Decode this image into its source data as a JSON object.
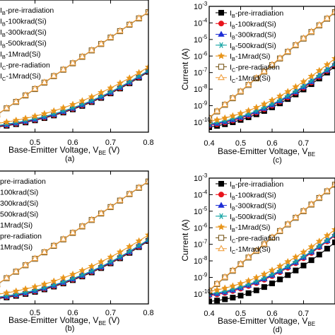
{
  "figure": {
    "colors": {
      "pre": "#000000",
      "k100": "#e8141c",
      "k300": "#1f2fd6",
      "k500": "#17a6a6",
      "m1": "#e8951a",
      "ic_pre": "#7a5a1e",
      "ic_m1": "#f0a040"
    }
  },
  "chart_data": [
    {
      "id": "a",
      "type": "line",
      "panel_label": "(a)",
      "xlabel": "Base-Emitter Voltage, V",
      "xlabel_sub": "BE",
      "xlabel_unit": " (V)",
      "ylabel": "",
      "xlim": [
        0.4,
        0.8
      ],
      "xticks": [
        "0.5",
        "0.6",
        "0.7",
        "0.8"
      ],
      "yscale": "log",
      "ylim_exp": [
        -10.3,
        -2.7
      ],
      "legend": [
        {
          "pre": "I",
          "sub": "B",
          "post": "-pre-irradiation",
          "series": 0
        },
        {
          "pre": "I",
          "sub": "B",
          "post": "-100krad(Si)",
          "series": 1
        },
        {
          "pre": "I",
          "sub": "B",
          "post": "-300krad(Si)",
          "series": 2
        },
        {
          "pre": "I",
          "sub": "B",
          "post": "-500krad(Si)",
          "series": 3
        },
        {
          "pre": "I",
          "sub": "B",
          "post": "-1Mrad(Si)",
          "series": 4
        },
        {
          "pre": "I",
          "sub": "C",
          "post": "-pre-radiation",
          "series": 5
        },
        {
          "pre": "I",
          "sub": "C",
          "post": "-1Mrad(Si)",
          "series": 6
        }
      ],
      "x": [
        0.4,
        0.425,
        0.45,
        0.475,
        0.5,
        0.525,
        0.55,
        0.575,
        0.6,
        0.625,
        0.65,
        0.675,
        0.7,
        0.725,
        0.75,
        0.775,
        0.8
      ],
      "series": [
        {
          "marker": "square-filled",
          "color_key": "pre",
          "log10": [
            -10.0,
            -9.93,
            -9.84,
            -9.74,
            -9.62,
            -9.49,
            -9.34,
            -9.17,
            -8.99,
            -8.79,
            -8.57,
            -8.33,
            -8.07,
            -7.79,
            -7.49,
            -7.17,
            -6.83
          ]
        },
        {
          "marker": "circle-filled",
          "color_key": "k100",
          "log10": [
            -9.97,
            -9.9,
            -9.81,
            -9.71,
            -9.59,
            -9.46,
            -9.31,
            -9.14,
            -8.96,
            -8.76,
            -8.54,
            -8.3,
            -8.04,
            -7.76,
            -7.46,
            -7.14,
            -6.8
          ]
        },
        {
          "marker": "triangle-filled",
          "color_key": "k300",
          "log10": [
            -9.94,
            -9.87,
            -9.78,
            -9.68,
            -9.56,
            -9.43,
            -9.28,
            -9.11,
            -8.93,
            -8.73,
            -8.51,
            -8.27,
            -8.01,
            -7.73,
            -7.43,
            -7.11,
            -6.78
          ]
        },
        {
          "marker": "star6",
          "color_key": "k500",
          "log10": [
            -9.91,
            -9.84,
            -9.75,
            -9.65,
            -9.53,
            -9.4,
            -9.25,
            -9.08,
            -8.9,
            -8.7,
            -8.48,
            -8.24,
            -7.98,
            -7.7,
            -7.4,
            -7.08,
            -6.76
          ]
        },
        {
          "marker": "star5",
          "color_key": "m1",
          "log10": [
            -9.8,
            -9.72,
            -9.62,
            -9.51,
            -9.38,
            -9.24,
            -9.08,
            -8.9,
            -8.71,
            -8.5,
            -8.27,
            -8.02,
            -7.76,
            -7.48,
            -7.19,
            -6.88,
            -6.56
          ]
        },
        {
          "marker": "square-open",
          "color_key": "ic_pre",
          "log10": [
            -9.3,
            -8.93,
            -8.56,
            -8.19,
            -7.82,
            -7.45,
            -7.08,
            -6.71,
            -6.34,
            -5.97,
            -5.6,
            -5.23,
            -4.86,
            -4.49,
            -4.12,
            -3.76,
            -3.4
          ]
        },
        {
          "marker": "triangle-open",
          "color_key": "ic_m1",
          "log10": [
            -9.28,
            -8.91,
            -8.54,
            -8.17,
            -7.8,
            -7.43,
            -7.06,
            -6.69,
            -6.32,
            -5.95,
            -5.58,
            -5.21,
            -4.84,
            -4.47,
            -4.1,
            -3.74,
            -3.38
          ]
        }
      ]
    },
    {
      "id": "c",
      "type": "line",
      "panel_label": "(c)",
      "xlabel": "Base-Emitter Voltage, V",
      "xlabel_sub": "BE",
      "xlabel_unit": "",
      "ylabel": "Current (A)",
      "xlim": [
        0.4,
        0.8
      ],
      "xticks": [
        "0.4",
        "0.5",
        "0.6",
        "0.7"
      ],
      "yscale": "log",
      "ylim_exp": [
        -10.6,
        -3.0
      ],
      "yticks_exp": [
        -10,
        -9,
        -8,
        -7,
        -6,
        -5,
        -4,
        -3
      ],
      "ytick_base": "10",
      "legend": [
        {
          "pre": "I",
          "sub": "B",
          "post": "-pre-irradiation",
          "series": 0
        },
        {
          "pre": "I",
          "sub": "B",
          "post": "-100krad(Si)",
          "series": 1
        },
        {
          "pre": "I",
          "sub": "B",
          "post": "-300krad(Si)",
          "series": 2
        },
        {
          "pre": "I",
          "sub": "B",
          "post": "-500krad(Si)",
          "series": 3
        },
        {
          "pre": "I",
          "sub": "B",
          "post": "-1Mrad(Si)",
          "series": 4
        },
        {
          "pre": "I",
          "sub": "C",
          "post": "-pre-radiation",
          "series": 5
        },
        {
          "pre": "I",
          "sub": "C",
          "post": "-1Mrad(Si)",
          "series": 6
        }
      ],
      "x": [
        0.4,
        0.425,
        0.45,
        0.475,
        0.5,
        0.525,
        0.55,
        0.575,
        0.6,
        0.625,
        0.65,
        0.675,
        0.7,
        0.725,
        0.75,
        0.775,
        0.8
      ],
      "series": [
        {
          "marker": "square-filled",
          "color_key": "pre",
          "log10": [
            -10.3,
            -10.22,
            -10.12,
            -10.0,
            -9.86,
            -9.7,
            -9.52,
            -9.32,
            -9.1,
            -8.86,
            -8.6,
            -8.32,
            -8.02,
            -7.7,
            -7.36,
            -7.0,
            -6.62
          ]
        },
        {
          "marker": "circle-filled",
          "color_key": "k100",
          "log10": [
            -10.2,
            -10.12,
            -10.02,
            -9.9,
            -9.76,
            -9.6,
            -9.42,
            -9.22,
            -9.0,
            -8.76,
            -8.5,
            -8.22,
            -7.92,
            -7.6,
            -7.26,
            -6.9,
            -6.53
          ]
        },
        {
          "marker": "triangle-filled",
          "color_key": "k300",
          "log10": [
            -10.15,
            -10.07,
            -9.97,
            -9.85,
            -9.71,
            -9.55,
            -9.37,
            -9.17,
            -8.95,
            -8.71,
            -8.45,
            -8.17,
            -7.87,
            -7.55,
            -7.21,
            -6.86,
            -6.49
          ]
        },
        {
          "marker": "star6",
          "color_key": "k500",
          "log10": [
            -10.1,
            -10.02,
            -9.92,
            -9.8,
            -9.66,
            -9.5,
            -9.32,
            -9.12,
            -8.9,
            -8.66,
            -8.4,
            -8.12,
            -7.82,
            -7.5,
            -7.17,
            -6.82,
            -6.46
          ]
        },
        {
          "marker": "star5",
          "color_key": "m1",
          "log10": [
            -9.95,
            -9.86,
            -9.75,
            -9.62,
            -9.47,
            -9.3,
            -9.11,
            -8.9,
            -8.67,
            -8.42,
            -8.15,
            -7.86,
            -7.55,
            -7.22,
            -6.88,
            -6.52,
            -6.15
          ]
        },
        {
          "marker": "square-open",
          "color_key": "ic_pre",
          "log10": [
            -9.75,
            -9.35,
            -8.95,
            -8.55,
            -8.15,
            -7.75,
            -7.35,
            -6.95,
            -6.55,
            -6.15,
            -5.75,
            -5.35,
            -4.95,
            -4.55,
            -4.15,
            -3.75,
            -3.35
          ]
        },
        {
          "marker": "triangle-open",
          "color_key": "ic_m1",
          "log10": [
            -9.72,
            -9.32,
            -8.92,
            -8.52,
            -8.12,
            -7.72,
            -7.32,
            -6.92,
            -6.52,
            -6.12,
            -5.72,
            -5.32,
            -4.92,
            -4.52,
            -4.12,
            -3.72,
            -3.32
          ]
        }
      ]
    },
    {
      "id": "b",
      "type": "line",
      "panel_label": "(b)",
      "xlabel": "Base-Emitter Voltage, V",
      "xlabel_sub": "BE",
      "xlabel_unit": " (V)",
      "ylabel": "",
      "xlim": [
        0.4,
        0.8
      ],
      "xticks": [
        "0.5",
        "0.6",
        "0.7",
        "0.8"
      ],
      "yscale": "log",
      "ylim_exp": [
        -10.3,
        -2.7
      ],
      "legend": [
        {
          "pre": "",
          "sub": "",
          "post": "pre-irradiation",
          "series": 0
        },
        {
          "pre": "",
          "sub": "",
          "post": "100krad(Si)",
          "series": 1
        },
        {
          "pre": "",
          "sub": "",
          "post": "300krad(Si)",
          "series": 2
        },
        {
          "pre": "",
          "sub": "",
          "post": "500krad(Si)",
          "series": 3
        },
        {
          "pre": "",
          "sub": "",
          "post": "1Mrad(Si)",
          "series": 4
        },
        {
          "pre": "",
          "sub": "",
          "post": "pre-radiation",
          "series": 5
        },
        {
          "pre": "",
          "sub": "",
          "post": "1Mrad(Si)",
          "series": 6
        }
      ],
      "x": [
        0.4,
        0.425,
        0.45,
        0.475,
        0.5,
        0.525,
        0.55,
        0.575,
        0.6,
        0.625,
        0.65,
        0.675,
        0.7,
        0.725,
        0.75,
        0.775,
        0.8
      ],
      "series": [
        {
          "marker": "square-filled",
          "color_key": "pre",
          "log10": [
            -10.0,
            -9.93,
            -9.84,
            -9.73,
            -9.61,
            -9.47,
            -9.31,
            -9.13,
            -8.94,
            -8.73,
            -8.5,
            -8.25,
            -7.98,
            -7.69,
            -7.38,
            -7.05,
            -6.7
          ]
        },
        {
          "marker": "circle-filled",
          "color_key": "k100",
          "log10": [
            -9.97,
            -9.9,
            -9.81,
            -9.7,
            -9.58,
            -9.44,
            -9.28,
            -9.1,
            -8.91,
            -8.7,
            -8.47,
            -8.22,
            -7.95,
            -7.66,
            -7.35,
            -7.02,
            -6.67
          ]
        },
        {
          "marker": "triangle-filled",
          "color_key": "k300",
          "log10": [
            -9.94,
            -9.87,
            -9.78,
            -9.67,
            -9.55,
            -9.41,
            -9.25,
            -9.07,
            -8.88,
            -8.67,
            -8.44,
            -8.19,
            -7.92,
            -7.63,
            -7.32,
            -6.99,
            -6.65
          ]
        },
        {
          "marker": "star6",
          "color_key": "k500",
          "log10": [
            -9.91,
            -9.84,
            -9.75,
            -9.64,
            -9.52,
            -9.38,
            -9.22,
            -9.04,
            -8.85,
            -8.64,
            -8.41,
            -8.16,
            -7.89,
            -7.6,
            -7.29,
            -6.96,
            -6.62
          ]
        },
        {
          "marker": "star5",
          "color_key": "m1",
          "log10": [
            -9.75,
            -9.67,
            -9.57,
            -9.45,
            -9.32,
            -9.17,
            -9.0,
            -8.81,
            -8.61,
            -8.39,
            -8.15,
            -7.89,
            -7.62,
            -7.33,
            -7.02,
            -6.7,
            -6.36
          ]
        },
        {
          "marker": "square-open",
          "color_key": "ic_pre",
          "log10": [
            -9.2,
            -8.83,
            -8.46,
            -8.09,
            -7.72,
            -7.35,
            -6.98,
            -6.61,
            -6.24,
            -5.87,
            -5.5,
            -5.13,
            -4.76,
            -4.39,
            -4.02,
            -3.66,
            -3.3
          ]
        },
        {
          "marker": "triangle-open",
          "color_key": "ic_m1",
          "log10": [
            -9.18,
            -8.81,
            -8.44,
            -8.07,
            -7.7,
            -7.33,
            -6.96,
            -6.59,
            -6.22,
            -5.85,
            -5.48,
            -5.11,
            -4.74,
            -4.37,
            -4.0,
            -3.64,
            -3.28
          ]
        }
      ]
    },
    {
      "id": "d",
      "type": "line",
      "panel_label": "(d)",
      "xlabel": "Base-Emitter Voltage, V",
      "xlabel_sub": "BE",
      "xlabel_unit": "",
      "ylabel": "Current (A)",
      "xlim": [
        0.4,
        0.8
      ],
      "xticks": [
        "0.4",
        "0.5",
        "0.6",
        "0.7"
      ],
      "yscale": "log",
      "ylim_exp": [
        -10.6,
        -3.0
      ],
      "yticks_exp": [
        -10,
        -9,
        -8,
        -7,
        -6,
        -5,
        -4,
        -3
      ],
      "ytick_base": "10",
      "legend": [
        {
          "pre": "I",
          "sub": "B",
          "post": "-pre-irradiation",
          "series": 0
        },
        {
          "pre": "I",
          "sub": "B",
          "post": "-100krad(Si)",
          "series": 1
        },
        {
          "pre": "I",
          "sub": "B",
          "post": "-300krad(Si)",
          "series": 2
        },
        {
          "pre": "I",
          "sub": "B",
          "post": "-500krad(Si)",
          "series": 3
        },
        {
          "pre": "I",
          "sub": "B",
          "post": "-1Mrad(Si)",
          "series": 4
        },
        {
          "pre": "I",
          "sub": "C",
          "post": "-pre-radiation",
          "series": 5
        },
        {
          "pre": "I",
          "sub": "C",
          "post": "-1Mrad(Si)",
          "series": 6
        }
      ],
      "x": [
        0.4,
        0.425,
        0.45,
        0.475,
        0.5,
        0.525,
        0.55,
        0.575,
        0.6,
        0.625,
        0.65,
        0.675,
        0.7,
        0.725,
        0.75,
        0.775,
        0.8
      ],
      "series": [
        {
          "marker": "square-filled",
          "color_key": "pre",
          "log10": [
            -10.45,
            -10.4,
            -10.32,
            -10.22,
            -10.1,
            -9.95,
            -9.78,
            -9.58,
            -9.36,
            -9.12,
            -8.86,
            -8.58,
            -8.28,
            -7.96,
            -7.62,
            -7.26,
            -6.88
          ]
        },
        {
          "marker": "circle-filled",
          "color_key": "k100",
          "log10": [
            -10.1,
            -10.03,
            -9.94,
            -9.82,
            -9.68,
            -9.52,
            -9.34,
            -9.14,
            -8.92,
            -8.68,
            -8.42,
            -8.14,
            -7.84,
            -7.52,
            -7.18,
            -6.83,
            -6.47
          ]
        },
        {
          "marker": "triangle-filled",
          "color_key": "k300",
          "log10": [
            -10.05,
            -9.98,
            -9.89,
            -9.77,
            -9.63,
            -9.47,
            -9.29,
            -9.09,
            -8.87,
            -8.63,
            -8.37,
            -8.09,
            -7.79,
            -7.47,
            -7.14,
            -6.79,
            -6.43
          ]
        },
        {
          "marker": "star6",
          "color_key": "k500",
          "log10": [
            -10.0,
            -9.93,
            -9.84,
            -9.72,
            -9.58,
            -9.42,
            -9.24,
            -9.04,
            -8.82,
            -8.58,
            -8.32,
            -8.04,
            -7.74,
            -7.43,
            -7.1,
            -6.75,
            -6.4
          ]
        },
        {
          "marker": "star5",
          "color_key": "m1",
          "log10": [
            -9.85,
            -9.76,
            -9.65,
            -9.52,
            -9.37,
            -9.2,
            -9.01,
            -8.8,
            -8.57,
            -8.32,
            -8.05,
            -7.77,
            -7.47,
            -7.15,
            -6.82,
            -6.47,
            -6.11
          ]
        },
        {
          "marker": "square-open",
          "color_key": "ic_pre",
          "log10": [
            -9.8,
            -9.4,
            -9.0,
            -8.6,
            -8.2,
            -7.8,
            -7.4,
            -7.0,
            -6.6,
            -6.2,
            -5.8,
            -5.4,
            -5.0,
            -4.6,
            -4.2,
            -3.8,
            -3.4
          ]
        },
        {
          "marker": "triangle-open",
          "color_key": "ic_m1",
          "log10": [
            -9.77,
            -9.37,
            -8.97,
            -8.57,
            -8.17,
            -7.77,
            -7.37,
            -6.97,
            -6.57,
            -6.17,
            -5.77,
            -5.37,
            -4.97,
            -4.57,
            -4.17,
            -3.77,
            -3.37
          ]
        }
      ]
    }
  ]
}
